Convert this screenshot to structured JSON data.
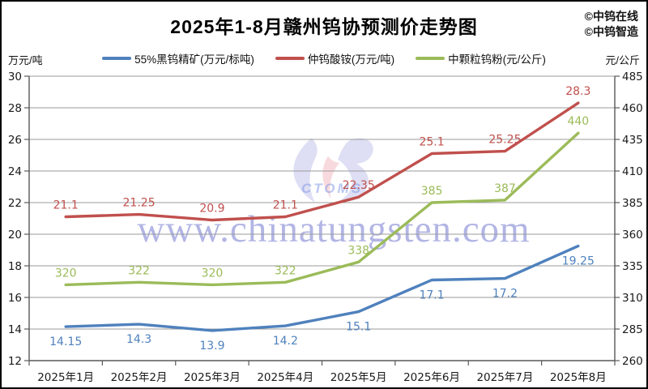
{
  "title": "2025年1-8月赣州钨协预测价走势图",
  "credits": [
    "©中钨在线",
    "©中钨智造"
  ],
  "watermark": {
    "text": "www.chinatungsten.com",
    "logo_text": "CTOMS"
  },
  "axes_units": {
    "left": "万元/吨",
    "right": "元/公斤"
  },
  "chart_data": {
    "type": "line",
    "title": "2025年1-8月赣州钨协预测价走势图",
    "categories": [
      "2025年1月",
      "2025年2月",
      "2025年3月",
      "2025年4月",
      "2025年5月",
      "2025年6月",
      "2025年7月",
      "2025年8月"
    ],
    "axes": {
      "left": {
        "unit": "万元/吨",
        "min": 12,
        "max": 30,
        "ticks": [
          30,
          28,
          26,
          24,
          22,
          20,
          18,
          16,
          14,
          12
        ]
      },
      "right": {
        "unit": "元/公斤",
        "min": 260,
        "max": 485,
        "ticks": [
          485,
          460,
          435,
          410,
          385,
          360,
          335,
          310,
          285,
          260
        ]
      }
    },
    "series": [
      {
        "name": "55%黑钨精矿(万元/标吨)",
        "color": "#4F81BD",
        "axis": "left",
        "label_position": "below",
        "values": [
          14.15,
          14.3,
          13.9,
          14.2,
          15.1,
          17.1,
          17.2,
          19.25
        ]
      },
      {
        "name": "仲钨酸铵(万元/吨)",
        "color": "#C0504D",
        "axis": "left",
        "label_position": "above",
        "values": [
          21.1,
          21.25,
          20.9,
          21.1,
          22.35,
          25.1,
          25.25,
          28.3
        ]
      },
      {
        "name": "中颗粒钨粉(元/公斤)",
        "color": "#9BBB59",
        "axis": "right",
        "label_position": "above",
        "values": [
          320,
          322,
          320,
          322,
          338,
          385,
          387,
          440
        ]
      }
    ],
    "grid": true,
    "legend_position": "top",
    "colors": {
      "grid": "#9b9b9b",
      "axis": "#595959",
      "tick_text": "#1a1a1a"
    }
  }
}
